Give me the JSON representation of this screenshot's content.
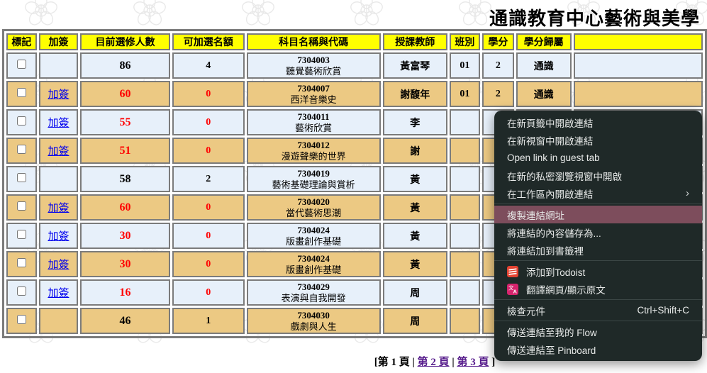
{
  "title": "通識教育中心藝術與美學",
  "table": {
    "headers": [
      "標記",
      "加簽",
      "目前選修人數",
      "可加選名額",
      "科目名稱與代碼",
      "授課教師",
      "班別",
      "學分",
      "學分歸屬",
      ""
    ],
    "rows": [
      {
        "add": "",
        "enrolled": "86",
        "avail": "4",
        "code": "7304003",
        "name": "聽覺藝術欣賞",
        "teacher": "黃富琴",
        "cls": "01",
        "credits": "2",
        "belong": "通識",
        "full": false
      },
      {
        "add": "加簽",
        "enrolled": "60",
        "avail": "0",
        "code": "7304007",
        "name": "西洋音樂史",
        "teacher": "謝馥年",
        "cls": "01",
        "credits": "2",
        "belong": "通識",
        "full": true
      },
      {
        "add": "加簽",
        "enrolled": "55",
        "avail": "0",
        "code": "7304011",
        "name": "藝術欣賞",
        "teacher": "李　　",
        "cls": "",
        "credits": "",
        "belong": "",
        "full": true
      },
      {
        "add": "加簽",
        "enrolled": "51",
        "avail": "0",
        "code": "7304012",
        "name": "漫遊聲樂的世界",
        "teacher": "謝　　",
        "cls": "",
        "credits": "",
        "belong": "",
        "full": true
      },
      {
        "add": "",
        "enrolled": "58",
        "avail": "2",
        "code": "7304019",
        "name": "藝術基礎理論與賞析",
        "teacher": "黃　　",
        "cls": "",
        "credits": "",
        "belong": "",
        "full": false
      },
      {
        "add": "加簽",
        "enrolled": "60",
        "avail": "0",
        "code": "7304020",
        "name": "當代藝術思潮",
        "teacher": "黃　　",
        "cls": "",
        "credits": "",
        "belong": "",
        "full": true
      },
      {
        "add": "加簽",
        "enrolled": "30",
        "avail": "0",
        "code": "7304024",
        "name": "版畫創作基礎",
        "teacher": "黃　　",
        "cls": "",
        "credits": "",
        "belong": "",
        "full": true
      },
      {
        "add": "加簽",
        "enrolled": "30",
        "avail": "0",
        "code": "7304024",
        "name": "版畫創作基礎",
        "teacher": "黃　　",
        "cls": "",
        "credits": "",
        "belong": "",
        "full": true
      },
      {
        "add": "加簽",
        "enrolled": "16",
        "avail": "0",
        "code": "7304029",
        "name": "表演與自我開發",
        "teacher": "周　　",
        "cls": "",
        "credits": "",
        "belong": "",
        "full": true
      },
      {
        "add": "",
        "enrolled": "46",
        "avail": "1",
        "code": "7304030",
        "name": "戲劇與人生",
        "teacher": "周　　",
        "cls": "",
        "credits": "",
        "belong": "",
        "full": false
      }
    ]
  },
  "pagination": {
    "open": "[",
    "current": "第 1 頁",
    "separator": "|",
    "page2": "第 2 頁",
    "page3": "第 3 頁",
    "close": "]"
  },
  "menu": {
    "open_new_tab": "在新頁籤中開啟連結",
    "open_new_window": "在新視窗中開啟連結",
    "open_guest_tab": "Open link in guest tab",
    "open_incognito": "在新的私密瀏覽視窗中開啟",
    "open_in_workspace": "在工作區內開啟連結",
    "submenu_arrow": "›",
    "copy_link": "複製連結網址",
    "save_link_as": "將連結的內容儲存為...",
    "bookmark_link": "將連結加到書籤裡",
    "add_to_todoist": "添加到Todoist",
    "translate": "翻譯網頁/顯示原文",
    "inspect": "檢查元件",
    "inspect_shortcut": "Ctrl+Shift+C",
    "send_to_flow": "傳送連結至我的 Flow",
    "send_to_pinboard": "傳送連結至 Pinboard"
  },
  "icons": {
    "todoist": "todoist-icon",
    "translate": "translate-icon",
    "submenu": "chevron-right-icon"
  },
  "colors": {
    "header_yellow": "#ffff00",
    "row_blue": "#e7f0fa",
    "row_tan": "#ecc983",
    "alert_red": "#ff0000",
    "link_blue": "#0000ee",
    "visited_purple": "#551a8b",
    "menu_bg": "#1f2928",
    "menu_highlight": "#7d4d5c",
    "todoist_red": "#e44332",
    "translate_pink": "#d6246d"
  }
}
